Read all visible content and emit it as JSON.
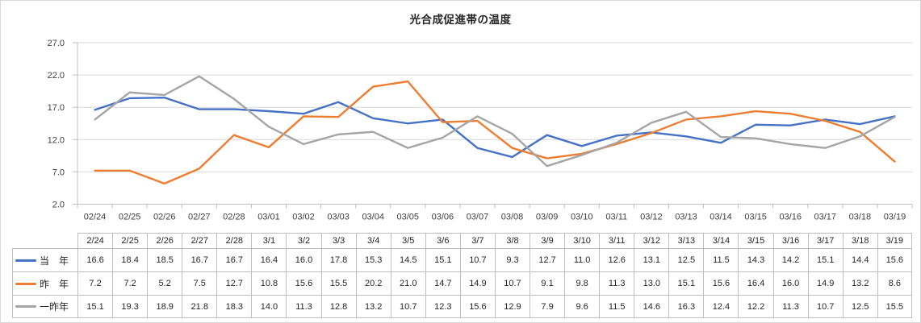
{
  "chart_data": {
    "type": "line",
    "title": "光合成促進帯の温度",
    "categories": [
      "02/24",
      "02/25",
      "02/26",
      "02/27",
      "02/28",
      "03/01",
      "03/02",
      "03/03",
      "03/04",
      "03/05",
      "03/06",
      "03/07",
      "03/08",
      "03/09",
      "03/10",
      "03/11",
      "03/12",
      "03/13",
      "03/14",
      "03/15",
      "03/16",
      "03/17",
      "03/18",
      "03/19"
    ],
    "table_headers": [
      "2/24",
      "2/25",
      "2/26",
      "2/27",
      "2/28",
      "3/1",
      "3/2",
      "3/3",
      "3/4",
      "3/5",
      "3/6",
      "3/7",
      "3/8",
      "3/9",
      "3/10",
      "3/11",
      "3/12",
      "3/13",
      "3/14",
      "3/15",
      "3/16",
      "3/17",
      "3/18",
      "3/19"
    ],
    "series": [
      {
        "name": "当　年",
        "color": "#4472C4",
        "values": [
          16.6,
          18.4,
          18.5,
          16.7,
          16.7,
          16.4,
          16.0,
          17.8,
          15.3,
          14.5,
          15.1,
          10.7,
          9.3,
          12.7,
          11.0,
          12.6,
          13.1,
          12.5,
          11.5,
          14.3,
          14.2,
          15.1,
          14.4,
          15.6
        ]
      },
      {
        "name": "昨　年",
        "color": "#ED7D31",
        "values": [
          7.2,
          7.2,
          5.2,
          7.5,
          12.7,
          10.8,
          15.6,
          15.5,
          20.2,
          21.0,
          14.7,
          14.9,
          10.7,
          9.1,
          9.8,
          11.3,
          13.0,
          15.1,
          15.6,
          16.4,
          16.0,
          14.9,
          13.2,
          8.6
        ]
      },
      {
        "name": "一昨年",
        "color": "#A5A5A5",
        "values": [
          15.1,
          19.3,
          18.9,
          21.8,
          18.3,
          14.0,
          11.3,
          12.8,
          13.2,
          10.7,
          12.3,
          15.6,
          12.9,
          7.9,
          9.6,
          11.5,
          14.6,
          16.3,
          12.4,
          12.2,
          11.3,
          10.7,
          12.5,
          15.5
        ]
      }
    ],
    "ylim": [
      2.0,
      27.0
    ],
    "yticks": [
      27.0,
      22.0,
      17.0,
      12.0,
      7.0,
      2.0
    ],
    "ytick_labels": [
      "27.0",
      "22.0",
      "17.0",
      "12.0",
      "7.0",
      "2.0"
    ],
    "grid": "horizontal-only",
    "markers": "none",
    "legend_position": "data-table-left",
    "colors": {
      "axis": "#BFBFBF",
      "gridline": "#D9D9D9",
      "table_border": "#BFBFBF",
      "label_text": "#404040",
      "value_text": "#262626",
      "frame_border": "#D9D9D9"
    }
  }
}
